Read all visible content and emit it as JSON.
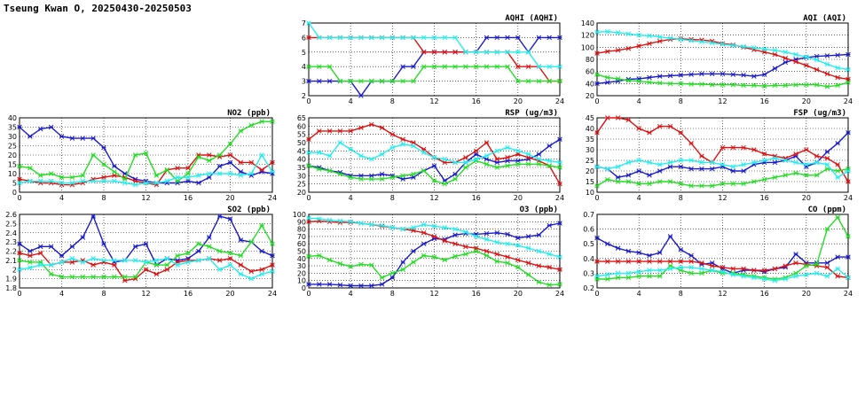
{
  "page": {
    "title": "Tseung Kwan O, 20250430-20250503"
  },
  "colors": {
    "blue": "#1a1acc",
    "red": "#dd1111",
    "green": "#22dd22",
    "cyan": "#22eeee",
    "grid": "#000000"
  },
  "chart_data": [
    {
      "id": "aqhi",
      "type": "line",
      "title": "AQHI (AQHI)",
      "x_ticks": [
        0,
        4,
        8,
        12,
        16,
        20,
        24
      ],
      "y_ticks": [
        2,
        3,
        4,
        5,
        6,
        7
      ],
      "ylim": [
        2,
        7
      ],
      "xlim": [
        0,
        24
      ],
      "series": [
        {
          "color": "blue",
          "values": [
            3,
            3,
            3,
            3,
            3,
            2,
            3,
            3,
            3,
            4,
            4,
            5,
            5,
            5,
            5,
            5,
            5,
            6,
            6,
            6,
            6,
            5,
            6,
            6,
            6
          ]
        },
        {
          "color": "red",
          "values": [
            6,
            6,
            6,
            6,
            6,
            6,
            6,
            6,
            6,
            6,
            6,
            5,
            5,
            5,
            5,
            5,
            5,
            5,
            5,
            5,
            4,
            4,
            4,
            3,
            3
          ]
        },
        {
          "color": "green",
          "values": [
            4,
            4,
            4,
            3,
            3,
            3,
            3,
            3,
            3,
            3,
            3,
            4,
            4,
            4,
            4,
            4,
            4,
            4,
            4,
            4,
            3,
            3,
            3,
            3,
            3
          ]
        },
        {
          "color": "cyan",
          "values": [
            7,
            6,
            6,
            6,
            6,
            6,
            6,
            6,
            6,
            6,
            6,
            6,
            6,
            6,
            6,
            5,
            5,
            5,
            5,
            5,
            5,
            5,
            4,
            4,
            4
          ]
        }
      ]
    },
    {
      "id": "aqi",
      "type": "line",
      "title": "AQI (AQI)",
      "x_ticks": [
        0,
        4,
        8,
        12,
        16,
        20,
        24
      ],
      "y_ticks": [
        20,
        40,
        60,
        80,
        100,
        120,
        140
      ],
      "ylim": [
        20,
        140
      ],
      "xlim": [
        0,
        24
      ],
      "series": [
        {
          "color": "blue",
          "values": [
            40,
            42,
            44,
            47,
            48,
            50,
            52,
            53,
            54,
            55,
            56,
            56,
            56,
            55,
            54,
            52,
            55,
            65,
            75,
            80,
            83,
            85,
            86,
            87,
            88
          ]
        },
        {
          "color": "red",
          "values": [
            90,
            93,
            95,
            98,
            102,
            106,
            110,
            113,
            114,
            113,
            112,
            110,
            106,
            104,
            100,
            96,
            92,
            88,
            82,
            76,
            70,
            63,
            56,
            50,
            47
          ]
        },
        {
          "color": "green",
          "values": [
            55,
            50,
            48,
            45,
            44,
            42,
            41,
            40,
            40,
            39,
            39,
            38,
            38,
            38,
            37,
            37,
            36,
            37,
            37,
            38,
            38,
            38,
            35,
            37,
            42
          ]
        },
        {
          "color": "cyan",
          "values": [
            125,
            126,
            124,
            122,
            120,
            119,
            117,
            115,
            113,
            111,
            109,
            107,
            105,
            103,
            101,
            99,
            97,
            95,
            92,
            88,
            84,
            79,
            72,
            66,
            63
          ]
        }
      ]
    },
    {
      "id": "no2",
      "type": "line",
      "title": "NO2 (ppb)",
      "x_ticks": [
        0,
        4,
        8,
        12,
        16,
        20,
        24
      ],
      "y_ticks": [
        0,
        5,
        10,
        15,
        20,
        25,
        30,
        35,
        40
      ],
      "ylim": [
        0,
        40
      ],
      "xlim": [
        0,
        24
      ],
      "series": [
        {
          "color": "blue",
          "values": [
            35,
            30,
            34,
            35,
            30,
            29,
            29,
            29,
            24,
            14,
            10,
            7,
            6,
            5,
            5,
            5,
            6,
            5,
            8,
            14,
            16,
            11,
            9,
            11,
            10
          ]
        },
        {
          "color": "red",
          "values": [
            7,
            6,
            5,
            5,
            4,
            4,
            5,
            7,
            8,
            9,
            8,
            6,
            5,
            4,
            12,
            13,
            13,
            20,
            20,
            19,
            20,
            16,
            16,
            12,
            16
          ]
        },
        {
          "color": "green",
          "values": [
            14,
            13,
            9,
            10,
            8,
            8,
            9,
            20,
            15,
            11,
            7,
            20,
            21,
            9,
            12,
            6,
            10,
            19,
            17,
            20,
            26,
            33,
            36,
            38,
            38
          ]
        },
        {
          "color": "cyan",
          "values": [
            5,
            6,
            6,
            6,
            5,
            5,
            6,
            6,
            6,
            6,
            5,
            4,
            5,
            5,
            6,
            8,
            8,
            9,
            10,
            10,
            10,
            9,
            10,
            20,
            11
          ]
        }
      ]
    },
    {
      "id": "rsp",
      "type": "line",
      "title": "RSP (ug/m3)",
      "x_ticks": [
        0,
        4,
        8,
        12,
        16,
        20,
        24
      ],
      "y_ticks": [
        20,
        25,
        30,
        35,
        40,
        45,
        50,
        55,
        60,
        65
      ],
      "ylim": [
        20,
        65
      ],
      "xlim": [
        0,
        24
      ],
      "series": [
        {
          "color": "blue",
          "values": [
            36,
            35,
            33,
            32,
            30,
            30,
            30,
            31,
            30,
            28,
            29,
            33,
            36,
            27,
            31,
            38,
            43,
            40,
            38,
            39,
            39,
            40,
            43,
            48,
            52
          ]
        },
        {
          "color": "red",
          "values": [
            52,
            57,
            57,
            57,
            57,
            59,
            61,
            59,
            55,
            52,
            50,
            46,
            41,
            38,
            38,
            41,
            45,
            50,
            40,
            41,
            43,
            41,
            39,
            36,
            25
          ]
        },
        {
          "color": "green",
          "values": [
            36,
            34,
            33,
            31,
            29,
            28,
            28,
            28,
            29,
            30,
            31,
            33,
            27,
            25,
            28,
            35,
            39,
            37,
            35,
            36,
            37,
            37,
            37,
            36,
            35
          ]
        },
        {
          "color": "cyan",
          "values": [
            44,
            44,
            42,
            50,
            46,
            42,
            40,
            43,
            47,
            49,
            48,
            44,
            41,
            40,
            38,
            38,
            40,
            42,
            45,
            47,
            45,
            43,
            40,
            39,
            38
          ]
        }
      ]
    },
    {
      "id": "fsp",
      "type": "line",
      "title": "FSP (ug/m3)",
      "x_ticks": [
        0,
        4,
        8,
        12,
        16,
        20,
        24
      ],
      "y_ticks": [
        10,
        15,
        20,
        25,
        30,
        35,
        40,
        45
      ],
      "ylim": [
        10,
        45
      ],
      "xlim": [
        0,
        24
      ],
      "series": [
        {
          "color": "blue",
          "values": [
            22,
            21,
            17,
            18,
            20,
            18,
            20,
            22,
            22,
            21,
            21,
            21,
            22,
            20,
            20,
            23,
            24,
            24,
            25,
            27,
            22,
            24,
            29,
            33,
            38
          ]
        },
        {
          "color": "red",
          "values": [
            38,
            45,
            45,
            44,
            40,
            38,
            41,
            41,
            38,
            33,
            27,
            24,
            31,
            31,
            31,
            30,
            28,
            27,
            26,
            28,
            30,
            27,
            26,
            23,
            15
          ]
        },
        {
          "color": "green",
          "values": [
            13,
            16,
            15,
            15,
            14,
            14,
            15,
            15,
            14,
            13,
            13,
            13,
            14,
            14,
            14,
            15,
            16,
            17,
            18,
            19,
            18,
            18,
            21,
            20,
            21
          ]
        },
        {
          "color": "cyan",
          "values": [
            22,
            21,
            22,
            24,
            25,
            24,
            23,
            24,
            25,
            25,
            24,
            24,
            23,
            22,
            23,
            24,
            25,
            26,
            25,
            24,
            23,
            24,
            23,
            17,
            20
          ]
        }
      ]
    },
    {
      "id": "so2",
      "type": "line",
      "title": "SO2 (ppb)",
      "x_ticks": [
        0,
        4,
        8,
        12,
        16,
        20,
        24
      ],
      "y_ticks": [
        1.8,
        1.9,
        2.0,
        2.1,
        2.2,
        2.3,
        2.4,
        2.5,
        2.6
      ],
      "ylim": [
        1.8,
        2.6
      ],
      "xlim": [
        0,
        24
      ],
      "series": [
        {
          "color": "blue",
          "values": [
            2.28,
            2.2,
            2.25,
            2.25,
            2.15,
            2.25,
            2.35,
            2.58,
            2.28,
            2.08,
            2.1,
            2.25,
            2.28,
            2.05,
            2.12,
            2.1,
            2.12,
            2.2,
            2.35,
            2.58,
            2.55,
            2.32,
            2.3,
            2.2,
            2.15
          ]
        },
        {
          "color": "red",
          "values": [
            2.18,
            2.15,
            2.18,
            2.05,
            2.08,
            2.08,
            2.1,
            2.05,
            2.08,
            2.05,
            1.88,
            1.9,
            2.0,
            1.95,
            2.0,
            2.08,
            2.1,
            2.1,
            2.12,
            2.1,
            2.12,
            2.05,
            1.98,
            2.0,
            2.05
          ]
        },
        {
          "color": "green",
          "values": [
            2.1,
            2.08,
            2.08,
            1.95,
            1.92,
            1.92,
            1.92,
            1.92,
            1.92,
            1.92,
            1.92,
            1.92,
            2.08,
            2.05,
            2.05,
            2.15,
            2.18,
            2.28,
            2.25,
            2.2,
            2.18,
            2.15,
            2.3,
            2.48,
            2.28
          ]
        },
        {
          "color": "cyan",
          "values": [
            2.0,
            2.02,
            2.05,
            2.05,
            2.08,
            2.12,
            2.08,
            2.12,
            2.1,
            2.1,
            2.1,
            2.1,
            2.08,
            2.1,
            2.12,
            2.05,
            2.08,
            2.1,
            2.12,
            2.0,
            2.05,
            1.95,
            1.9,
            1.95,
            1.98
          ]
        }
      ]
    },
    {
      "id": "o3",
      "type": "line",
      "title": "O3 (ppb)",
      "x_ticks": [
        0,
        4,
        8,
        12,
        16,
        20,
        24
      ],
      "y_ticks": [
        0,
        10,
        20,
        30,
        40,
        50,
        60,
        70,
        80,
        90,
        100
      ],
      "ylim": [
        0,
        100
      ],
      "xlim": [
        0,
        24
      ],
      "series": [
        {
          "color": "blue",
          "values": [
            5,
            5,
            5,
            4,
            3,
            3,
            3,
            5,
            14,
            35,
            50,
            60,
            67,
            66,
            72,
            74,
            73,
            74,
            75,
            73,
            68,
            70,
            72,
            85,
            88
          ]
        },
        {
          "color": "red",
          "values": [
            90,
            91,
            90,
            89,
            89,
            88,
            86,
            84,
            82,
            80,
            78,
            75,
            70,
            64,
            60,
            56,
            54,
            50,
            46,
            42,
            38,
            34,
            30,
            28,
            25
          ]
        },
        {
          "color": "green",
          "values": [
            43,
            44,
            38,
            33,
            29,
            32,
            31,
            14,
            20,
            25,
            35,
            44,
            42,
            38,
            43,
            46,
            50,
            44,
            36,
            34,
            28,
            18,
            8,
            4,
            5
          ]
        },
        {
          "color": "cyan",
          "values": [
            95,
            94,
            92,
            91,
            90,
            88,
            86,
            85,
            82,
            80,
            82,
            86,
            84,
            82,
            80,
            76,
            70,
            66,
            62,
            60,
            58,
            54,
            50,
            46,
            42
          ]
        }
      ]
    },
    {
      "id": "co",
      "type": "line",
      "title": "CO (ppm)",
      "x_ticks": [
        0,
        4,
        8,
        12,
        16,
        20,
        24
      ],
      "y_ticks": [
        0.2,
        0.3,
        0.4,
        0.5,
        0.6,
        0.7
      ],
      "ylim": [
        0.2,
        0.7
      ],
      "xlim": [
        0,
        24
      ],
      "series": [
        {
          "color": "blue",
          "values": [
            0.54,
            0.5,
            0.47,
            0.45,
            0.44,
            0.42,
            0.44,
            0.55,
            0.46,
            0.42,
            0.36,
            0.37,
            0.33,
            0.3,
            0.32,
            0.32,
            0.31,
            0.33,
            0.34,
            0.43,
            0.37,
            0.37,
            0.37,
            0.41,
            0.41
          ]
        },
        {
          "color": "red",
          "values": [
            0.38,
            0.38,
            0.38,
            0.38,
            0.38,
            0.38,
            0.38,
            0.38,
            0.38,
            0.38,
            0.37,
            0.35,
            0.34,
            0.33,
            0.33,
            0.32,
            0.32,
            0.33,
            0.35,
            0.37,
            0.36,
            0.35,
            0.34,
            0.28,
            0.27
          ]
        },
        {
          "color": "green",
          "values": [
            0.26,
            0.26,
            0.27,
            0.27,
            0.28,
            0.28,
            0.28,
            0.35,
            0.32,
            0.3,
            0.3,
            0.32,
            0.3,
            0.3,
            0.29,
            0.28,
            0.27,
            0.26,
            0.27,
            0.3,
            0.35,
            0.36,
            0.6,
            0.68,
            0.55
          ]
        },
        {
          "color": "cyan",
          "values": [
            0.28,
            0.29,
            0.3,
            0.3,
            0.31,
            0.32,
            0.32,
            0.33,
            0.34,
            0.34,
            0.33,
            0.32,
            0.31,
            0.29,
            0.28,
            0.27,
            0.26,
            0.25,
            0.26,
            0.28,
            0.29,
            0.3,
            0.28,
            0.33,
            0.27
          ]
        }
      ]
    }
  ]
}
